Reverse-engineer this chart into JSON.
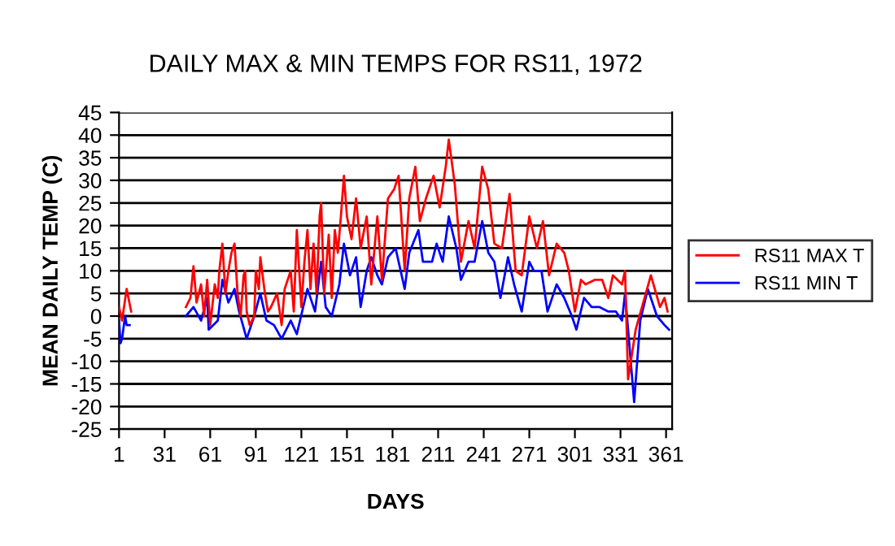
{
  "chart_data": {
    "type": "line",
    "title": "DAILY MAX & MIN TEMPS FOR RS11, 1972",
    "xlabel": "DAYS",
    "ylabel": "MEAN DAILY TEMP (C)",
    "xlim": [
      1,
      365
    ],
    "xticks": [
      1,
      31,
      61,
      91,
      121,
      151,
      181,
      211,
      241,
      271,
      301,
      331,
      361
    ],
    "ylim": [
      -25,
      45
    ],
    "yticks": [
      -25,
      -20,
      -15,
      -10,
      -5,
      0,
      5,
      10,
      15,
      20,
      25,
      30,
      35,
      40,
      45
    ],
    "grid": "y",
    "legend": "right",
    "marker": "none",
    "line_style": "solid",
    "series": [
      {
        "name": "RS11 MAX T",
        "color": "#ff0000",
        "x": [
          1,
          3,
          6,
          9,
          20,
          45,
          48,
          50,
          52,
          55,
          57,
          59,
          61,
          64,
          66,
          67,
          69,
          71,
          73,
          75,
          77,
          79,
          81,
          83,
          84,
          85,
          87,
          90,
          91,
          93,
          94,
          97,
          99,
          101,
          105,
          108,
          110,
          114,
          116,
          118,
          121,
          123,
          125,
          127,
          129,
          131,
          133,
          134,
          136,
          139,
          141,
          143,
          145,
          147,
          149,
          151,
          154,
          157,
          160,
          164,
          167,
          171,
          174,
          178,
          182,
          185,
          189,
          192,
          196,
          199,
          203,
          208,
          212,
          216,
          218,
          222,
          226,
          231,
          235,
          240,
          244,
          248,
          253,
          258,
          262,
          266,
          271,
          276,
          280,
          284,
          289,
          294,
          297,
          301,
          305,
          308,
          314,
          319,
          323,
          326,
          332,
          334,
          336,
          341,
          346,
          351,
          357,
          360,
          362
        ],
        "values": [
          2,
          -1,
          6,
          1,
          null,
          2,
          4,
          11,
          3,
          7,
          0,
          8,
          -2,
          7,
          4,
          10,
          16,
          5,
          10,
          14,
          16,
          5,
          0,
          9,
          10,
          1,
          -2,
          0,
          10,
          6,
          13,
          5,
          1,
          2,
          5,
          -2,
          6,
          10,
          1,
          19,
          2,
          12,
          19,
          6,
          16,
          5,
          22,
          25,
          5,
          18,
          4,
          19,
          14,
          22,
          31,
          22,
          17,
          26,
          15,
          22,
          7,
          22,
          8,
          26,
          28,
          31,
          10,
          26,
          33,
          21,
          26,
          31,
          24,
          33,
          39,
          29,
          12,
          21,
          15,
          33,
          28,
          16,
          15,
          27,
          10,
          9,
          22,
          15,
          21,
          9,
          16,
          14,
          10,
          1,
          8,
          7,
          8,
          8,
          4,
          9,
          7,
          10,
          -14,
          -3,
          3,
          9,
          2,
          4,
          1
        ]
      },
      {
        "name": "RS11 MIN T",
        "color": "#0000ff",
        "x": [
          1,
          2,
          3,
          5,
          6,
          8,
          20,
          45,
          50,
          55,
          59,
          60,
          66,
          69,
          73,
          77,
          80,
          85,
          90,
          94,
          98,
          103,
          108,
          114,
          118,
          125,
          130,
          134,
          137,
          141,
          146,
          149,
          153,
          157,
          160,
          164,
          167,
          171,
          174,
          178,
          183,
          189,
          192,
          198,
          201,
          207,
          210,
          214,
          218,
          223,
          226,
          231,
          235,
          240,
          244,
          248,
          252,
          257,
          261,
          266,
          271,
          274,
          279,
          283,
          289,
          294,
          299,
          302,
          307,
          312,
          317,
          323,
          328,
          332,
          334,
          340,
          344,
          349,
          355,
          360,
          363
        ],
        "values": [
          -1,
          -6,
          -5,
          0,
          -2,
          -2,
          null,
          0,
          2,
          -1,
          4,
          -3,
          -1,
          8,
          3,
          6,
          1,
          -5,
          0,
          5,
          -1,
          -2,
          -5,
          -1,
          -4,
          6,
          1,
          12,
          2,
          0,
          7,
          16,
          9,
          13,
          2,
          10,
          13,
          9,
          7,
          13,
          15,
          6,
          14,
          19,
          12,
          12,
          16,
          12,
          22,
          15,
          8,
          12,
          12,
          21,
          14,
          12,
          4,
          13,
          7,
          1,
          12,
          10,
          10,
          1,
          7,
          4,
          0,
          -3,
          4,
          2,
          2,
          1,
          1,
          -1,
          5,
          -19,
          -1,
          6,
          0,
          -2,
          -3
        ]
      }
    ]
  }
}
